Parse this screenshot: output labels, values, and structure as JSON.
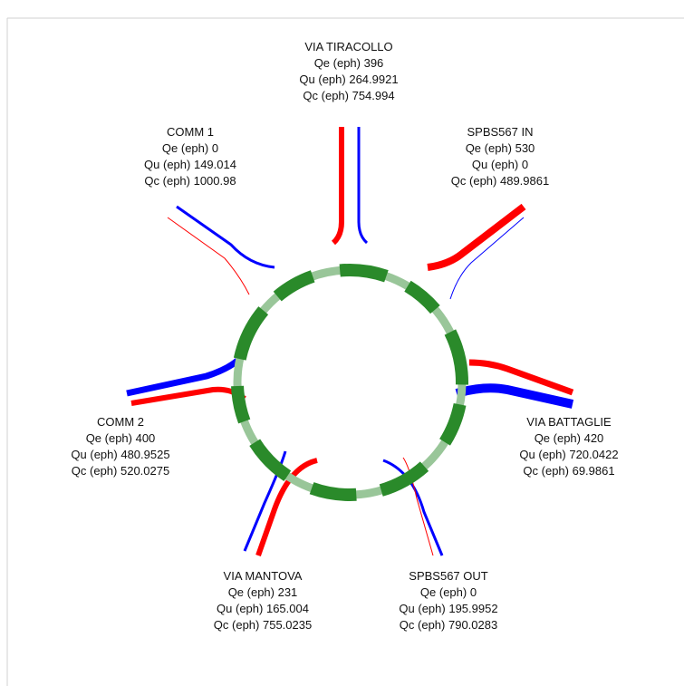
{
  "arms": [
    {
      "name": "VIA TIRACOLLO",
      "qe": "Qe (eph) 396",
      "qu": "Qu (eph) 264.9921",
      "qc": "Qc (eph) 754.994"
    },
    {
      "name": "SPBS567 IN",
      "qe": "Qe (eph) 530",
      "qu": "Qu (eph) 0",
      "qc": "Qc (eph) 489.9861"
    },
    {
      "name": "VIA BATTAGLIE",
      "qe": "Qe (eph) 420",
      "qu": "Qu (eph) 720.0422",
      "qc": "Qc (eph) 69.9861"
    },
    {
      "name": "SPBS567 OUT",
      "qe": "Qe (eph) 0",
      "qu": "Qu (eph) 195.9952",
      "qc": "Qc (eph) 790.0283"
    },
    {
      "name": "VIA MANTOVA",
      "qe": "Qe (eph) 231",
      "qu": "Qu (eph) 165.004",
      "qc": "Qc (eph) 755.0235"
    },
    {
      "name": "COMM 2",
      "qe": "Qe (eph) 400",
      "qu": "Qu (eph) 480.9525",
      "qc": "Qc (eph) 520.0275"
    },
    {
      "name": "COMM 1",
      "qe": "Qe (eph) 0",
      "qu": "Qu (eph) 149.014",
      "qc": "Qc (eph) 1000.98"
    }
  ]
}
